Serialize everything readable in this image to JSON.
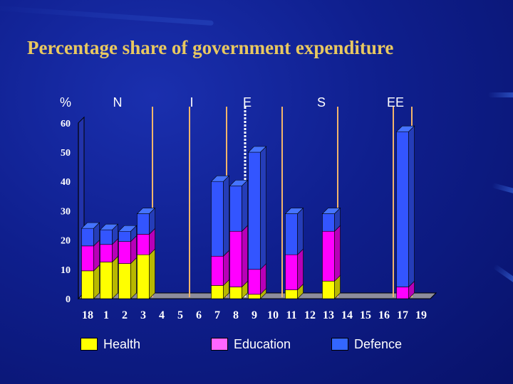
{
  "title": "Percentage share of government expenditure",
  "colors": {
    "health": "#ffff00",
    "education": "#ff00ff",
    "defence": "#3355ff",
    "separator": "#f3b56b",
    "axis_text": "#ffffff"
  },
  "legend": [
    {
      "name": "Health",
      "color": "#ffff00"
    },
    {
      "name": "Education",
      "color": "#ff66ff"
    },
    {
      "name": "Defence",
      "color": "#3366ff"
    }
  ],
  "chart_data": {
    "type": "bar",
    "stacked": true,
    "title": "Percentage share of government expenditure",
    "ylabel": "%",
    "xlabel": "",
    "ylim": [
      0,
      60
    ],
    "yticks": [
      0,
      10,
      20,
      30,
      40,
      50,
      60
    ],
    "grid": false,
    "legend_position": "bottom",
    "categories": [
      "18",
      "1",
      "2",
      "3",
      "4",
      "5",
      "6",
      "7",
      "8",
      "9",
      "10",
      "11",
      "12",
      "13",
      "14",
      "15",
      "16",
      "17",
      "19"
    ],
    "series": [
      {
        "name": "Health",
        "values": [
          9.5,
          12.5,
          12,
          15,
          null,
          null,
          null,
          4.5,
          4,
          1.5,
          null,
          3,
          null,
          6,
          null,
          null,
          null,
          null,
          null
        ]
      },
      {
        "name": "Education",
        "values": [
          8.5,
          6,
          7.5,
          7,
          null,
          null,
          null,
          10,
          19,
          8.5,
          null,
          12,
          null,
          17,
          null,
          null,
          null,
          4,
          null
        ]
      },
      {
        "name": "Defence",
        "values": [
          6,
          5,
          3.5,
          7,
          null,
          null,
          null,
          25.5,
          15.5,
          40,
          null,
          14,
          null,
          6,
          null,
          null,
          null,
          53,
          null
        ]
      }
    ],
    "group_labels": [
      {
        "label": "%",
        "after_category": null
      },
      {
        "label": "N",
        "after_category": "1"
      },
      {
        "label": "I",
        "after_category": "5"
      },
      {
        "label": "E",
        "after_category": "8"
      },
      {
        "label": "S",
        "after_category": "12"
      },
      {
        "label": "EE",
        "after_category": "16"
      }
    ],
    "group_separators": [
      "3",
      "5",
      "7",
      "8",
      "10",
      "13",
      "16",
      "17"
    ],
    "dashed_separator": "8"
  }
}
